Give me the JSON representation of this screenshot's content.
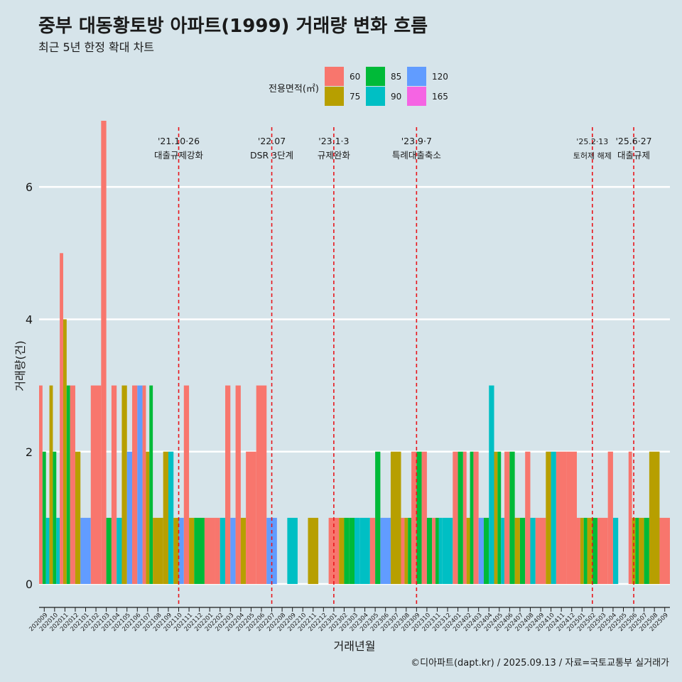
{
  "title": "중부 대동황토방 아파트(1999) 거래량 변화 흐름",
  "subtitle": "최근 5년 한정 확대 차트",
  "caption": "©디아파트(dapt.kr) / 2025.09.13 / 자료=국토교통부 실거래가",
  "colors": {
    "60": "#f8766d",
    "75": "#b79f00",
    "85": "#00ba38",
    "90": "#00bfc4",
    "120": "#619cff",
    "165": "#f564e3"
  },
  "chart_data": {
    "type": "bar",
    "xlabel": "거래년월",
    "ylabel": "거래량(건)",
    "ylim": [
      -0.3,
      7.0
    ],
    "yticks": [
      0,
      2,
      4,
      6
    ],
    "legend": {
      "title": "전용면적(㎡)",
      "position": "top",
      "entries": [
        "60",
        "75",
        "85",
        "90",
        "120",
        "165"
      ]
    },
    "months": [
      "202009",
      "202010",
      "202011",
      "202012",
      "202101",
      "202102",
      "202103",
      "202104",
      "202105",
      "202106",
      "202107",
      "202108",
      "202109",
      "202110",
      "202111",
      "202112",
      "202201",
      "202202",
      "202203",
      "202204",
      "202205",
      "202206",
      "202207",
      "202208",
      "202209",
      "202210",
      "202211",
      "202212",
      "202301",
      "202302",
      "202303",
      "202304",
      "202305",
      "202306",
      "202307",
      "202308",
      "202309",
      "202310",
      "202311",
      "202312",
      "202401",
      "202402",
      "202403",
      "202404",
      "202405",
      "202406",
      "202407",
      "202408",
      "202409",
      "202410",
      "202411",
      "202412",
      "202501",
      "202502",
      "202503",
      "202504",
      "202505",
      "202506",
      "202507",
      "202508",
      "202509"
    ],
    "series": [
      {
        "name": "60",
        "values": [
          3,
          0,
          5,
          3,
          0,
          3,
          7,
          3,
          0,
          3,
          3,
          0,
          0,
          0,
          3,
          0,
          1,
          1,
          3,
          3,
          2,
          3,
          0,
          0,
          0,
          0,
          0,
          0,
          1,
          0,
          0,
          0,
          1,
          0,
          0,
          1,
          2,
          2,
          1,
          0,
          2,
          2,
          2,
          0,
          0,
          2,
          0,
          2,
          1,
          0,
          2,
          2,
          1,
          0,
          1,
          2,
          0,
          2,
          0,
          0,
          1
        ]
      },
      {
        "name": "75",
        "values": [
          0,
          3,
          4,
          2,
          0,
          0,
          0,
          0,
          3,
          0,
          2,
          1,
          2,
          1,
          1,
          0,
          0,
          0,
          0,
          1,
          0,
          0,
          0,
          0,
          0,
          0,
          1,
          0,
          0,
          1,
          0,
          0,
          0,
          0,
          2,
          1,
          0,
          0,
          0,
          0,
          0,
          1,
          0,
          0,
          2,
          0,
          1,
          0,
          0,
          2,
          0,
          0,
          1,
          1,
          0,
          0,
          0,
          1,
          1,
          2,
          0
        ]
      },
      {
        "name": "85",
        "values": [
          2,
          2,
          3,
          0,
          0,
          0,
          1,
          0,
          0,
          0,
          3,
          0,
          0,
          0,
          0,
          1,
          0,
          0,
          0,
          0,
          0,
          0,
          0,
          0,
          0,
          0,
          0,
          0,
          0,
          1,
          1,
          0,
          2,
          0,
          0,
          1,
          2,
          1,
          1,
          0,
          2,
          2,
          0,
          1,
          2,
          2,
          1,
          0,
          0,
          0,
          0,
          0,
          1,
          1,
          0,
          0,
          0,
          1,
          1,
          0,
          0
        ]
      },
      {
        "name": "90",
        "values": [
          1,
          1,
          0,
          0,
          0,
          0,
          0,
          1,
          0,
          0,
          0,
          0,
          2,
          0,
          0,
          0,
          0,
          1,
          0,
          0,
          0,
          0,
          0,
          0,
          1,
          0,
          0,
          0,
          0,
          0,
          1,
          1,
          0,
          0,
          0,
          0,
          0,
          0,
          1,
          1,
          0,
          0,
          0,
          3,
          1,
          0,
          0,
          1,
          0,
          2,
          0,
          0,
          0,
          0,
          0,
          1,
          0,
          0,
          0,
          0,
          0
        ]
      },
      {
        "name": "120",
        "values": [
          0,
          0,
          0,
          0,
          1,
          0,
          0,
          0,
          2,
          3,
          0,
          0,
          0,
          1,
          0,
          0,
          0,
          0,
          1,
          0,
          0,
          0,
          1,
          0,
          0,
          0,
          0,
          0,
          0,
          0,
          0,
          0,
          0,
          1,
          0,
          0,
          0,
          0,
          0,
          0,
          0,
          0,
          1,
          0,
          0,
          0,
          0,
          0,
          0,
          0,
          0,
          0,
          0,
          0,
          0,
          0,
          0,
          0,
          0,
          0,
          0
        ]
      },
      {
        "name": "165",
        "values": [
          0,
          0,
          0,
          0,
          0,
          0,
          0,
          0,
          0,
          0,
          0,
          0,
          0,
          0,
          0,
          0,
          0,
          0,
          0,
          0,
          0,
          0,
          0,
          0,
          0,
          0,
          0,
          0,
          0,
          0,
          0,
          0,
          0,
          0,
          0,
          0,
          0,
          0,
          0,
          0,
          0,
          0,
          0,
          0,
          0,
          0,
          0,
          0,
          0,
          0,
          0,
          0,
          0,
          0,
          0,
          0,
          0,
          0,
          0,
          0,
          0
        ]
      }
    ],
    "events": [
      {
        "month": "202110",
        "date": "'21.10·26",
        "label": "대출규제강화"
      },
      {
        "month": "202207",
        "date": "'22.07",
        "label": "DSR 3단계"
      },
      {
        "month": "202301",
        "date": "'23.1·3",
        "label": "규제완화"
      },
      {
        "month": "202309",
        "date": "'23.9·7",
        "label": "특례대출축소"
      },
      {
        "month": "202502",
        "date": "'25.2·13",
        "label": "토허제 해제"
      },
      {
        "month": "202506",
        "date": "'25.6·27",
        "label": "대출규제"
      }
    ]
  }
}
